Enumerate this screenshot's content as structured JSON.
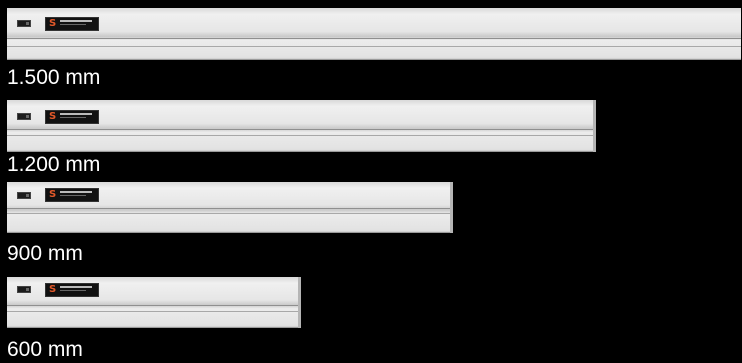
{
  "products": [
    {
      "size_label": "1.500 mm",
      "length_mm": 1500,
      "brand_mark": "S"
    },
    {
      "size_label": "1.200 mm",
      "length_mm": 1200,
      "brand_mark": "S"
    },
    {
      "size_label": "900 mm",
      "length_mm": 900,
      "brand_mark": "S"
    },
    {
      "size_label": "600 mm",
      "length_mm": 600,
      "brand_mark": "S"
    }
  ],
  "colors": {
    "background": "#000000",
    "bar_body": "#e6e6e6",
    "logo_accent": "#e2592a",
    "label_text": "#ffffff"
  }
}
